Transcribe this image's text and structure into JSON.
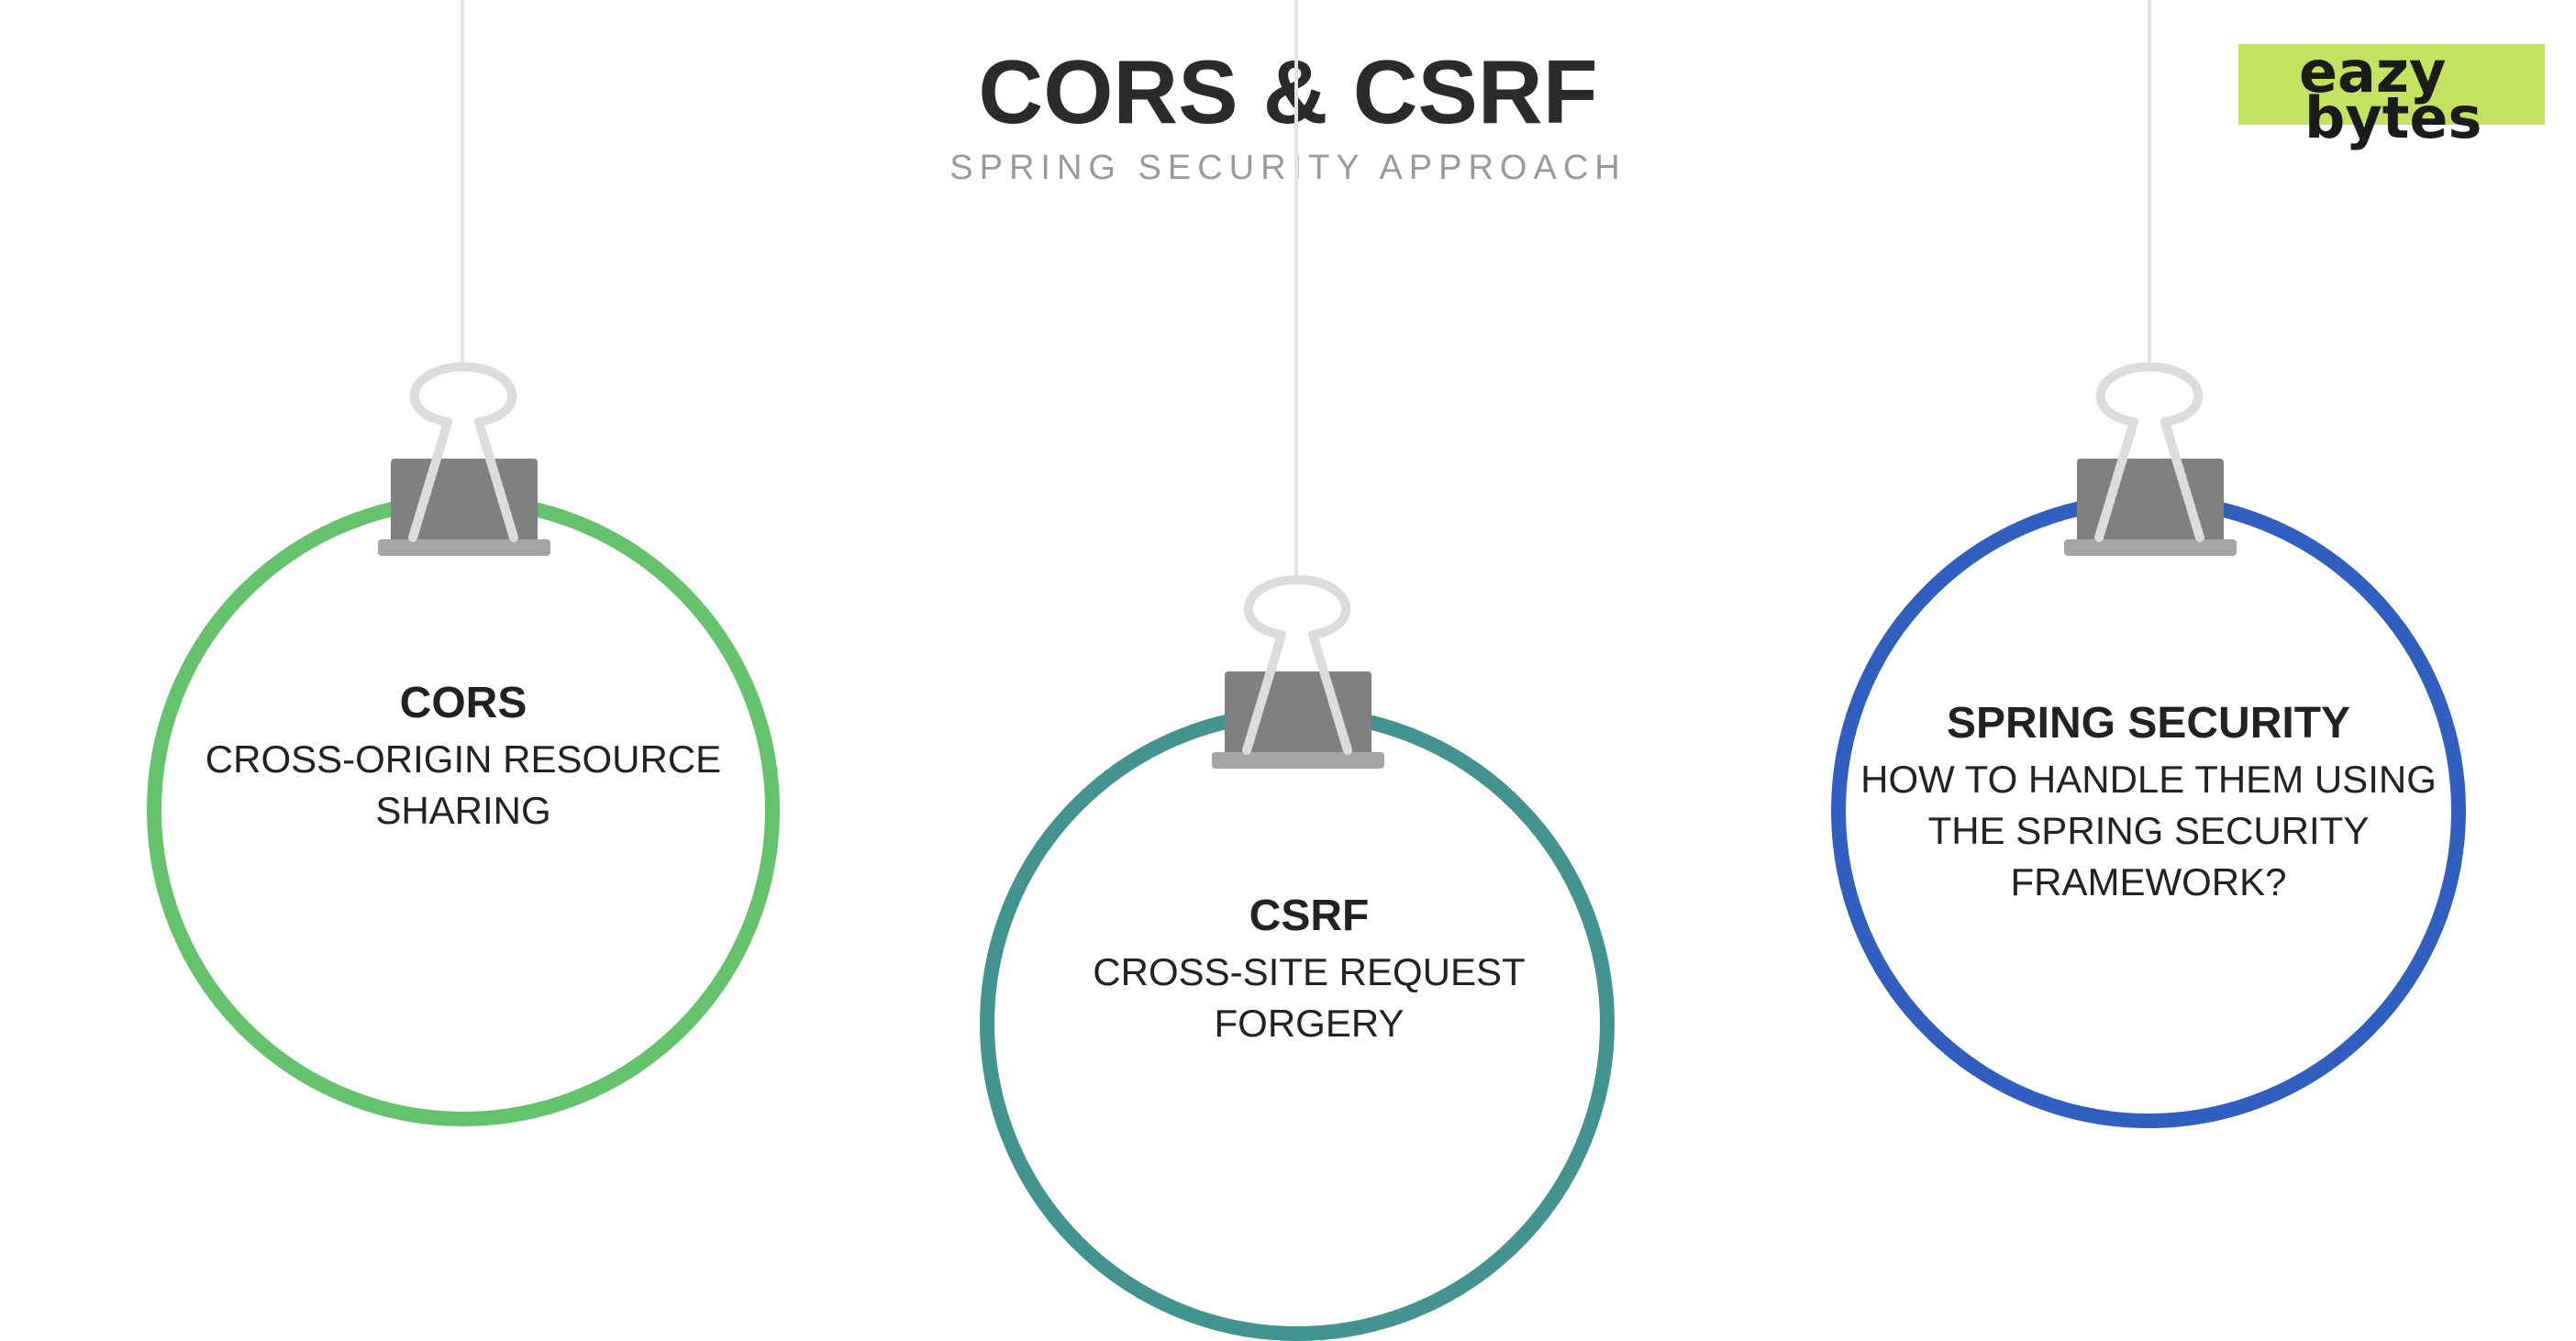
{
  "slide": {
    "title": "CORS & CSRF",
    "subtitle": "SPRING SECURITY APPROACH"
  },
  "logo": {
    "line1": "eazy",
    "line2": "bytes",
    "background": "#c3e25f"
  },
  "ornaments": [
    {
      "heading": "CORS",
      "body": "CROSS-ORIGIN RESOURCE\nSHARING",
      "ring_color": "#62c36b"
    },
    {
      "heading": "CSRF",
      "body": "CROSS-SITE REQUEST\nFORGERY",
      "ring_color": "#41948f"
    },
    {
      "heading": "SPRING SECURITY",
      "body": "HOW TO HANDLE THEM USING\nTHE SPRING SECURITY\nFRAMEWORK?",
      "ring_color": "#2f5fbf"
    }
  ]
}
